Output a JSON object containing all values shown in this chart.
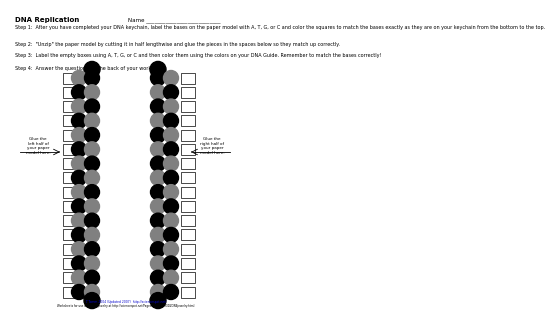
{
  "title": "DNA Replication",
  "name_label": "Name ___________________________",
  "step1": "Step 1:  After you have completed your DNA keychain, label the bases on the paper model with A, T, G, or C and color the squares to match the bases exactly as they are on your keychain from the bottom to the top.",
  "step2": "Step 2:  \"Unzip\" the paper model by cutting it in half lengthwise and glue the pieces in the spaces below so they match up correctly.",
  "step3": "Step 3:  Label the empty boxes using A, T, G, or C and then color them using the colors on your DNA Guide. Remember to match the bases correctly!",
  "step4": "Step 4:  Answer the questions on the back of your worksheet.",
  "left_label": "Glue the\nleft half of\nyour paper\nmodel here.",
  "right_label": "Glue the\nright half of\nyour paper\nmodel here.",
  "footer1": "T. Tomm 2004 (Updated 2007)  http://sciencespot.net/",
  "footer2": "Worksheets for use with DNA Jewelry at http://sciencespot.net/Pages/KIDZONE/KIDZONEjewelry.html",
  "num_rows": 16,
  "left_backbone_colors": [
    "#000000",
    "#808080",
    "#000000",
    "#808080",
    "#000000",
    "#808080",
    "#000000",
    "#808080",
    "#000000",
    "#808080",
    "#000000",
    "#808080",
    "#000000",
    "#808080",
    "#000000",
    "#808080"
  ],
  "left_base_colors": [
    "#808080",
    "#000000",
    "#808080",
    "#000000",
    "#808080",
    "#000000",
    "#808080",
    "#000000",
    "#808080",
    "#000000",
    "#808080",
    "#000000",
    "#808080",
    "#000000",
    "#808080",
    "#000000"
  ],
  "right_backbone_colors": [
    "#000000",
    "#808080",
    "#000000",
    "#808080",
    "#000000",
    "#808080",
    "#000000",
    "#808080",
    "#000000",
    "#808080",
    "#000000",
    "#808080",
    "#000000",
    "#808080",
    "#000000",
    "#808080"
  ],
  "right_base_colors": [
    "#808080",
    "#000000",
    "#808080",
    "#000000",
    "#808080",
    "#000000",
    "#808080",
    "#000000",
    "#808080",
    "#000000",
    "#808080",
    "#000000",
    "#808080",
    "#000000",
    "#808080",
    "#000000"
  ],
  "background_color": "#ffffff",
  "text_color": "#000000"
}
